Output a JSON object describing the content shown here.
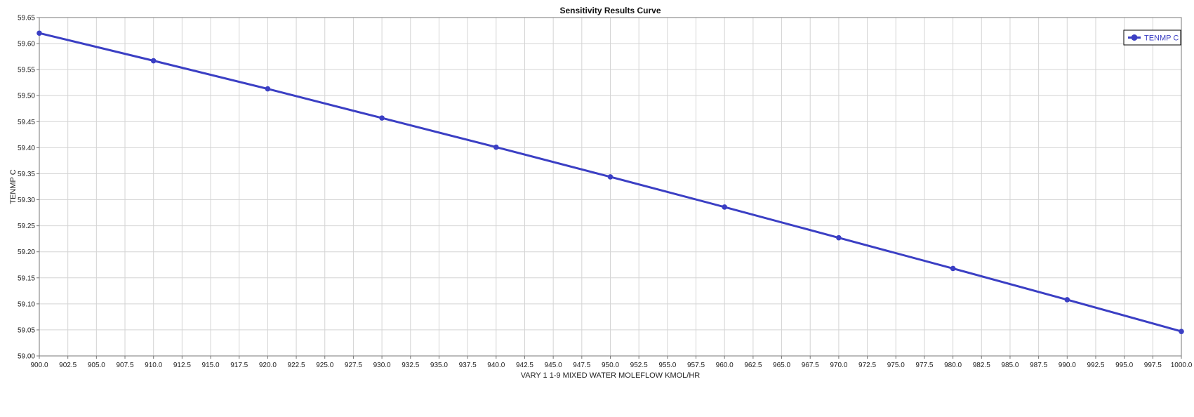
{
  "chart_data": {
    "type": "line",
    "title": "Sensitivity Results Curve",
    "xlabel": "VARY  1 1-9 MIXED WATER MOLEFLOW KMOL/HR",
    "ylabel": "TENMP C",
    "xlim": [
      900.0,
      1000.0
    ],
    "ylim": [
      59.0,
      59.65
    ],
    "x_tick_step": 2.5,
    "y_tick_step": 0.05,
    "grid": true,
    "legend_position": "top-right",
    "series": [
      {
        "name": "TENMP C",
        "color": "#3b3fc4",
        "marker": "circle",
        "x": [
          900,
          910,
          920,
          930,
          940,
          950,
          960,
          970,
          980,
          990,
          1000
        ],
        "y": [
          59.62,
          59.567,
          59.513,
          59.457,
          59.401,
          59.344,
          59.286,
          59.227,
          59.168,
          59.108,
          59.047
        ]
      }
    ]
  }
}
